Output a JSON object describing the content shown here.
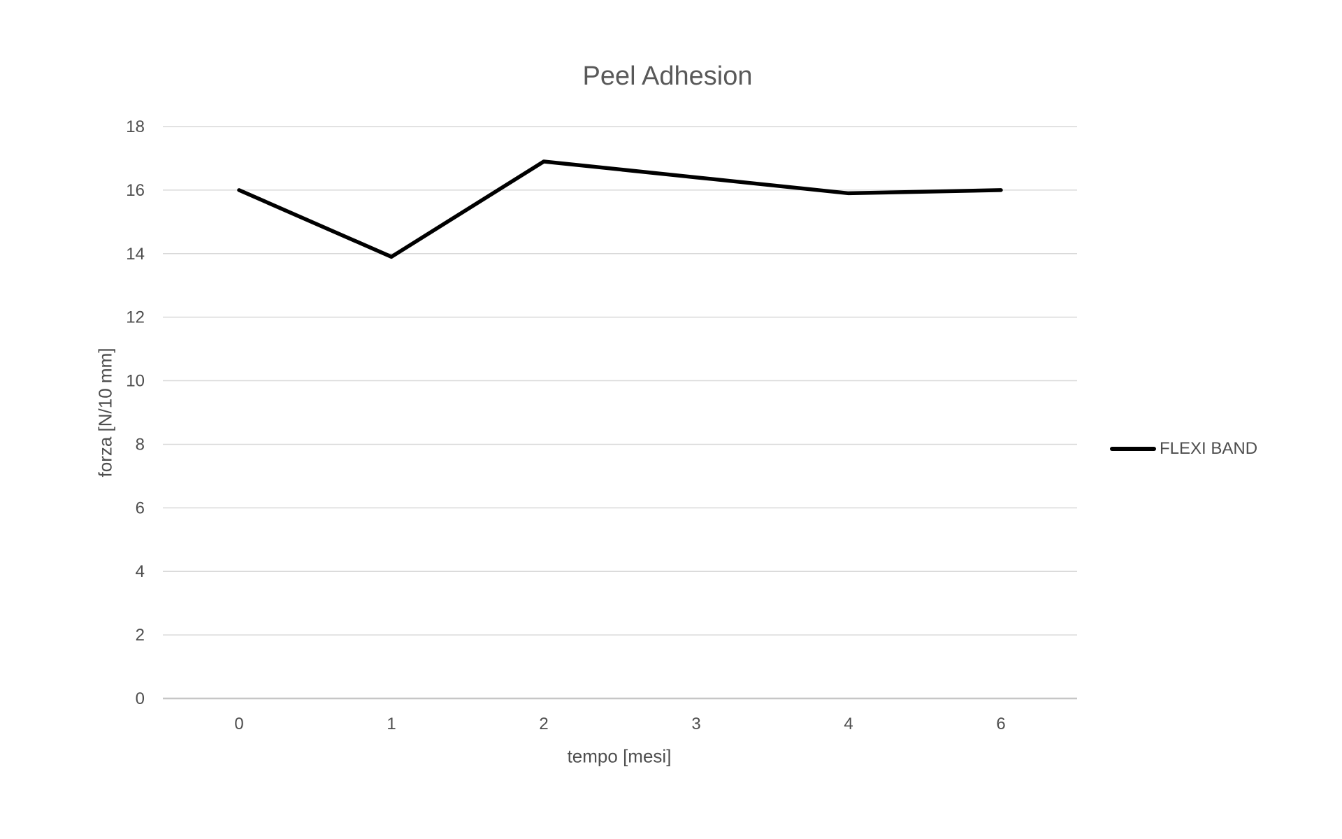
{
  "title": "Peel Adhesion",
  "colors": {
    "background": "#ffffff",
    "gridline": "#d9d9d9",
    "axis_line": "#c6c6c6",
    "tick_text": "#4e4e4e",
    "title_text": "#595959",
    "series_line": "#000000"
  },
  "legend": {
    "label": "FLEXI BAND",
    "swatch": "line-swatch",
    "position": "right"
  },
  "chart_data": {
    "type": "line",
    "title": "Peel Adhesion",
    "xlabel": "tempo [mesi]",
    "ylabel": "forza [N/10 mm]",
    "categories": [
      "0",
      "1",
      "2",
      "3",
      "4",
      "6"
    ],
    "series": [
      {
        "name": "FLEXI BAND",
        "values": [
          16,
          13.9,
          16.9,
          16.4,
          15.9,
          16
        ],
        "color": "#000000"
      }
    ],
    "ylim": [
      0,
      18
    ],
    "ytick_step": 2,
    "grid": "horizontal-only",
    "legend_position": "right"
  }
}
